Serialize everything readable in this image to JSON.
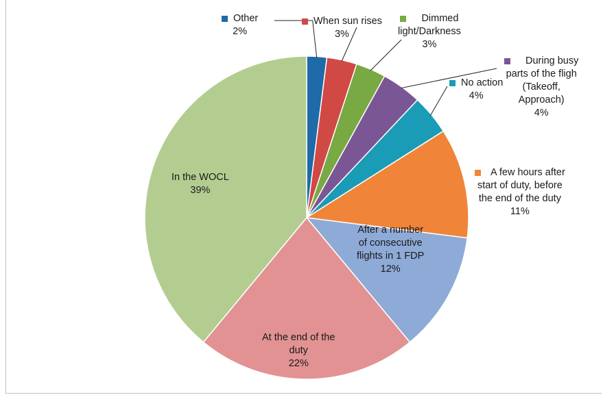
{
  "chart_data": {
    "type": "pie",
    "start_angle_deg": 0,
    "direction": "clockwise",
    "slices": [
      {
        "label": "Other",
        "value": 2,
        "pct_label": "2%",
        "color": "#1f6aa8"
      },
      {
        "label": "When sun rises",
        "value": 3,
        "pct_label": "3%",
        "color": "#d04945"
      },
      {
        "label": "Dimmed light/Darkness",
        "lines": [
          "Dimmed",
          "light/Darkness"
        ],
        "value": 3,
        "pct_label": "3%",
        "color": "#78a943"
      },
      {
        "label": "During busy parts of the fligh (Takeoff, Approach)",
        "lines": [
          "During busy",
          "parts of the fligh",
          "(Takeoff,",
          "Approach)"
        ],
        "value": 4,
        "pct_label": "4%",
        "color": "#7b5694"
      },
      {
        "label": "No action",
        "value": 4,
        "pct_label": "4%",
        "color": "#1a9bb6"
      },
      {
        "label": "A few hours after start of duty, before the end of the duty",
        "lines": [
          "A few hours after",
          "start of duty, before",
          "the end of the duty"
        ],
        "value": 11,
        "pct_label": "11%",
        "color": "#f08438"
      },
      {
        "label": "After a number of consecutive flights in 1 FDP",
        "lines": [
          "After a number",
          "of consecutive",
          "flights in 1 FDP"
        ],
        "value": 12,
        "pct_label": "12%",
        "color": "#8eaad6"
      },
      {
        "label": "At the end of the duty",
        "lines": [
          "At the end of the",
          "duty"
        ],
        "value": 22,
        "pct_label": "22%",
        "color": "#e29292"
      },
      {
        "label": "In the WOCL",
        "value": 39,
        "pct_label": "39%",
        "color": "#b3cd91"
      }
    ]
  }
}
